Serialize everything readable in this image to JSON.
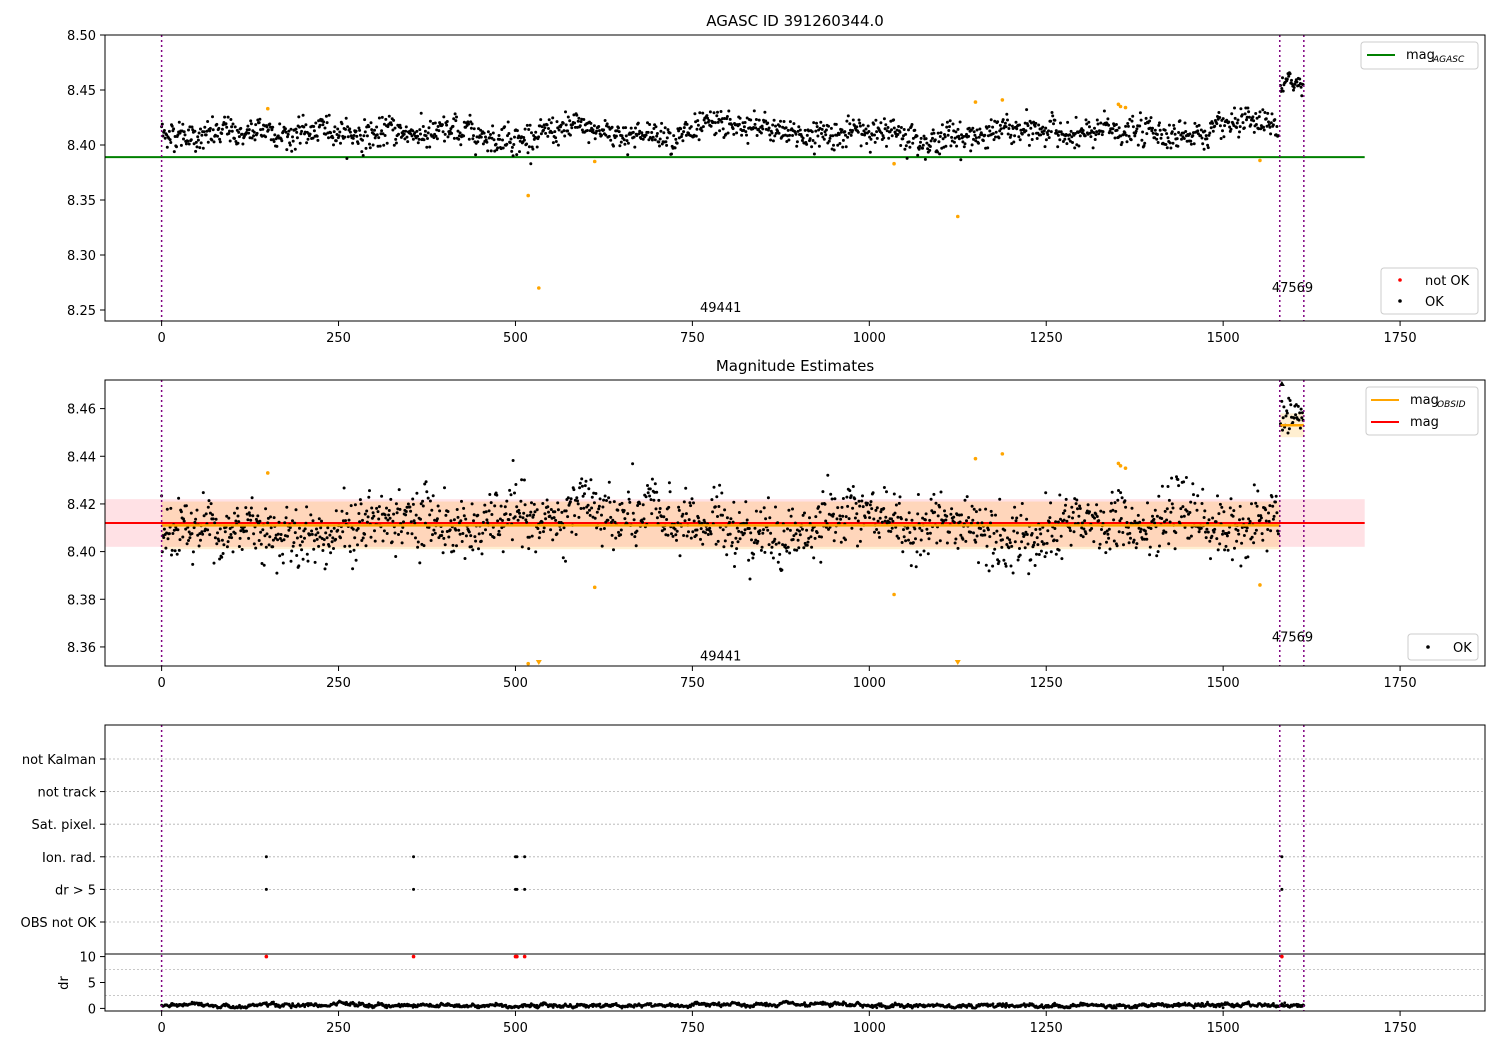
{
  "figure": {
    "title": "AGASC ID 391260344.0"
  },
  "chart_data": [
    {
      "type": "scatter",
      "title": "AGASC ID 391260344.0",
      "xlim": [
        -80,
        1870
      ],
      "ylim": [
        8.24,
        8.5
      ],
      "xticks": [
        0,
        250,
        500,
        750,
        1000,
        1250,
        1500,
        1750
      ],
      "yticks": [
        8.25,
        8.3,
        8.35,
        8.4,
        8.45,
        8.5
      ],
      "ytick_format": 2,
      "mag_agasc": 8.389,
      "mag_agasc_xrange": [
        -80,
        1700
      ],
      "obsid_boundaries": [
        0,
        1580,
        1614
      ],
      "obsid_labels": [
        {
          "x": 790,
          "y": 8.252,
          "text": "49441"
        },
        {
          "x": 1598,
          "y": 8.27,
          "text": "47569"
        }
      ],
      "series_ok": {
        "name": "OK",
        "color": "#000000",
        "segments": [
          {
            "x0": 0,
            "x1": 1578,
            "n": 1580,
            "mean": 8.411,
            "sd": 0.0078
          },
          {
            "x0": 1581,
            "x1": 1613,
            "n": 34,
            "mean": 8.455,
            "sd": 0.006
          }
        ]
      },
      "series_not_ok": {
        "name": "not OK",
        "color": "#ff0000"
      },
      "outliers": {
        "color": "#ffa500",
        "points": [
          [
            150,
            8.433
          ],
          [
            518,
            8.354
          ],
          [
            533,
            8.27
          ],
          [
            612,
            8.385
          ],
          [
            1035,
            8.383
          ],
          [
            1125,
            8.335
          ],
          [
            1150,
            8.439
          ],
          [
            1188,
            8.441
          ],
          [
            1352,
            8.437
          ],
          [
            1355,
            8.435
          ],
          [
            1362,
            8.434
          ],
          [
            1552,
            8.386
          ]
        ]
      },
      "legends": [
        {
          "position": "top-right",
          "entries": [
            {
              "label": "mag",
              "sub": "AGASC",
              "color": "#008000",
              "kind": "line"
            }
          ]
        },
        {
          "position": "bottom-right",
          "entries": [
            {
              "label": "not OK",
              "color": "#ff0000",
              "kind": "dot"
            },
            {
              "label": "OK",
              "color": "#000000",
              "kind": "dot"
            }
          ]
        }
      ]
    },
    {
      "type": "scatter",
      "title": "Magnitude Estimates",
      "xlim": [
        -80,
        1870
      ],
      "ylim": [
        8.352,
        8.472
      ],
      "xticks": [
        0,
        250,
        500,
        750,
        1000,
        1250,
        1500,
        1750
      ],
      "yticks": [
        8.36,
        8.38,
        8.4,
        8.42,
        8.44,
        8.46
      ],
      "ytick_format": 2,
      "mag": 8.412,
      "mag_band": [
        8.402,
        8.422
      ],
      "mag_xrange": [
        -80,
        1700
      ],
      "mag_obsid": [
        {
          "x0": 0,
          "x1": 1580,
          "value": 8.411,
          "band": [
            8.401,
            8.421
          ]
        },
        {
          "x0": 1581,
          "x1": 1614,
          "value": 8.453,
          "band": [
            8.448,
            8.458
          ]
        }
      ],
      "obsid_boundaries": [
        0,
        1580,
        1614
      ],
      "obsid_labels": [
        {
          "x": 790,
          "y": 8.356,
          "text": "49441"
        },
        {
          "x": 1598,
          "y": 8.364,
          "text": "47569"
        }
      ],
      "series_ok": {
        "name": "OK",
        "color": "#000000",
        "segments": [
          {
            "x0": 0,
            "x1": 1578,
            "n": 1580,
            "mean": 8.411,
            "sd": 0.0078
          },
          {
            "x0": 1581,
            "x1": 1613,
            "n": 34,
            "mean": 8.455,
            "sd": 0.006
          }
        ]
      },
      "outliers": {
        "color": "#ffa500",
        "points": [
          [
            150,
            8.433
          ],
          [
            518,
            8.353
          ],
          [
            612,
            8.385
          ],
          [
            1035,
            8.382
          ],
          [
            1150,
            8.439
          ],
          [
            1188,
            8.441
          ],
          [
            1352,
            8.437
          ],
          [
            1355,
            8.436
          ],
          [
            1362,
            8.435
          ],
          [
            1552,
            8.386
          ]
        ]
      },
      "offscale_markers": [
        [
          533,
          8.352
        ],
        [
          1125,
          8.352
        ],
        [
          1583,
          8.471
        ]
      ],
      "legends": [
        {
          "position": "top-right",
          "entries": [
            {
              "label": "mag",
              "sub": "OBSID",
              "color": "#ffa500",
              "kind": "line"
            },
            {
              "label": "mag",
              "sub": "",
              "color": "#ff0000",
              "kind": "line"
            }
          ]
        },
        {
          "position": "bottom-right",
          "entries": [
            {
              "label": "OK",
              "color": "#000000",
              "kind": "dot"
            }
          ]
        }
      ]
    },
    {
      "type": "scatter",
      "title": "",
      "xlim": [
        -80,
        1870
      ],
      "xticks": [
        0,
        250,
        500,
        750,
        1000,
        1250,
        1500,
        1750
      ],
      "flag_rows": [
        "not Kalman",
        "not track",
        "Sat. pixel.",
        "Ion. rad.",
        "dr > 5",
        "OBS not OK"
      ],
      "flag_points": {
        "Ion. rad.": [
          148,
          356,
          500,
          502,
          513,
          1583
        ],
        "dr > 5": [
          148,
          356,
          500,
          502,
          513,
          1583
        ]
      },
      "dr_points_red": [
        [
          148,
          10
        ],
        [
          356,
          10
        ],
        [
          500,
          10
        ],
        [
          502,
          10
        ],
        [
          513,
          10
        ],
        [
          1583,
          10
        ]
      ],
      "obsid_boundaries": [
        0,
        1580,
        1614
      ],
      "dr_panel": {
        "ylabel": "dr",
        "ylim": [
          -0.5,
          10.5
        ],
        "yticks": [
          0,
          5,
          10
        ],
        "series": {
          "color": "#000000",
          "x0": 0,
          "x1": 1614,
          "n": 1614,
          "mean": 0.6,
          "sd": 0.22
        }
      }
    }
  ]
}
